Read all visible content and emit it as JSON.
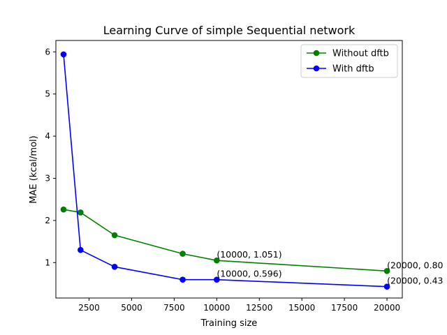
{
  "chart_data": {
    "type": "line",
    "title": "Learning Curve of simple Sequential network",
    "xlabel": "Training size",
    "ylabel": "MAE (kcal/mol)",
    "xlim": [
      550,
      20900
    ],
    "ylim": [
      0.16,
      6.27
    ],
    "xticks": [
      2500,
      5000,
      7500,
      10000,
      12500,
      15000,
      17500,
      20000
    ],
    "yticks": [
      1,
      2,
      3,
      4,
      5,
      6
    ],
    "grid": false,
    "legend_position": "top-right",
    "series": [
      {
        "name": "Without dftb",
        "color": "#008000",
        "x": [
          1000,
          2000,
          4000,
          8000,
          10000,
          20000
        ],
        "y": [
          2.26,
          2.19,
          1.65,
          1.21,
          1.051,
          0.8
        ]
      },
      {
        "name": "With dftb",
        "color": "#0000ff",
        "x": [
          1000,
          2000,
          4000,
          8000,
          10000,
          20000
        ],
        "y": [
          5.94,
          1.3,
          0.9,
          0.596,
          0.596,
          0.43
        ]
      }
    ],
    "annotations": [
      {
        "text": "(10000, 1.051)",
        "x": 10000,
        "y": 1.051
      },
      {
        "text": "(20000, 0.80",
        "x": 20000,
        "y": 0.8
      },
      {
        "text": "(10000, 0.596)",
        "x": 10000,
        "y": 0.596
      },
      {
        "text": "(20000, 0.43",
        "x": 20000,
        "y": 0.43
      }
    ]
  }
}
